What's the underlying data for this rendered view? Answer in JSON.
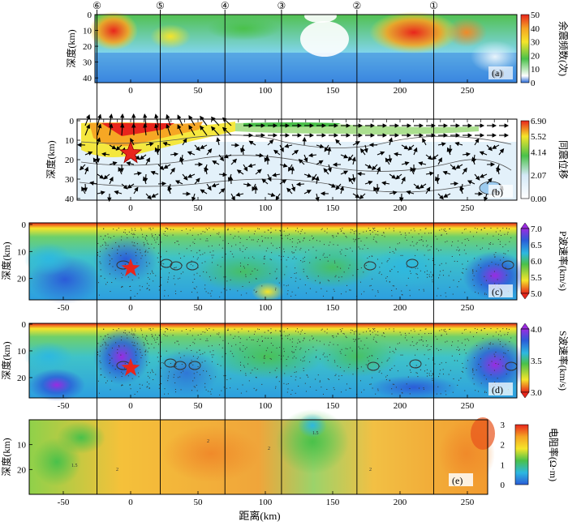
{
  "figure": {
    "x_axis_label": "距离(km)",
    "profile_markers": [
      "⑥",
      "⑤",
      "④",
      "③",
      "②",
      "①"
    ],
    "profile_marker_x_km": [
      -25,
      22,
      70,
      112,
      168,
      225
    ]
  },
  "panels": [
    {
      "id": "a",
      "tag": "(a)",
      "ylabel": "深度(km)",
      "y_ticks": [
        "0",
        "10",
        "20",
        "30",
        "40"
      ],
      "x_ticks": [
        "0",
        "50",
        "100",
        "150",
        "200",
        "250"
      ],
      "colorbar": {
        "title": "余震频数(次)",
        "ticks": [
          "50",
          "40",
          "30",
          "20",
          "10",
          "0"
        ]
      },
      "colors": [
        "#2b6cd8",
        "#ffffff",
        "#4ac14a",
        "#f5e52a",
        "#f5a323",
        "#e8251c"
      ]
    },
    {
      "id": "b",
      "tag": "(b)",
      "ylabel": "深度(km)",
      "y_ticks": [
        "0",
        "10",
        "20",
        "30",
        "40"
      ],
      "x_ticks": [
        "0",
        "50",
        "100",
        "150",
        "200",
        "250"
      ],
      "colorbar": {
        "title": "同震位移",
        "ticks": [
          "6.90",
          "5.52",
          "4.14",
          "2.07",
          "0.00"
        ]
      },
      "colors": [
        "#ffffff",
        "#d4e9f7",
        "#4ac14a",
        "#f5e52a",
        "#e8251c"
      ]
    },
    {
      "id": "c",
      "tag": "(c)",
      "ylabel": "深度(km)",
      "y_ticks": [
        "0",
        "10",
        "20"
      ],
      "x_ticks": [
        "-50",
        "0",
        "50",
        "100",
        "150",
        "200",
        "250"
      ],
      "colorbar": {
        "title": "P波速率(km/s)",
        "ticks": [
          "7.0",
          "6.5",
          "6.0",
          "5.5",
          "5.0"
        ]
      },
      "colors": [
        "#e8251c",
        "#f5e52a",
        "#4ac14a",
        "#2db8e0",
        "#2b5cd8",
        "#9b2be0"
      ]
    },
    {
      "id": "d",
      "tag": "(d)",
      "ylabel": "深度(km)",
      "y_ticks": [
        "0",
        "10",
        "20"
      ],
      "x_ticks": [
        "-50",
        "0",
        "50",
        "100",
        "150",
        "200",
        "250"
      ],
      "colorbar": {
        "title": "S波速率(km/s)",
        "ticks": [
          "4.0",
          "3.5",
          "3.0"
        ]
      },
      "colors": [
        "#e8251c",
        "#f5e52a",
        "#4ac14a",
        "#2db8e0",
        "#2b5cd8",
        "#9b2be0"
      ]
    },
    {
      "id": "e",
      "tag": "(e)",
      "ylabel": "深度(km)",
      "y_ticks": [
        "10",
        "20"
      ],
      "x_ticks": [
        "-50",
        "0",
        "50",
        "100",
        "150",
        "200",
        "250"
      ],
      "colorbar": {
        "title": "电阻率(Ω·m)",
        "ticks": [
          "3",
          "2",
          "1",
          "0"
        ]
      },
      "colors": [
        "#2b5cd8",
        "#2db8e0",
        "#4ac14a",
        "#f5e52a",
        "#f5a323",
        "#e8251c"
      ]
    }
  ]
}
